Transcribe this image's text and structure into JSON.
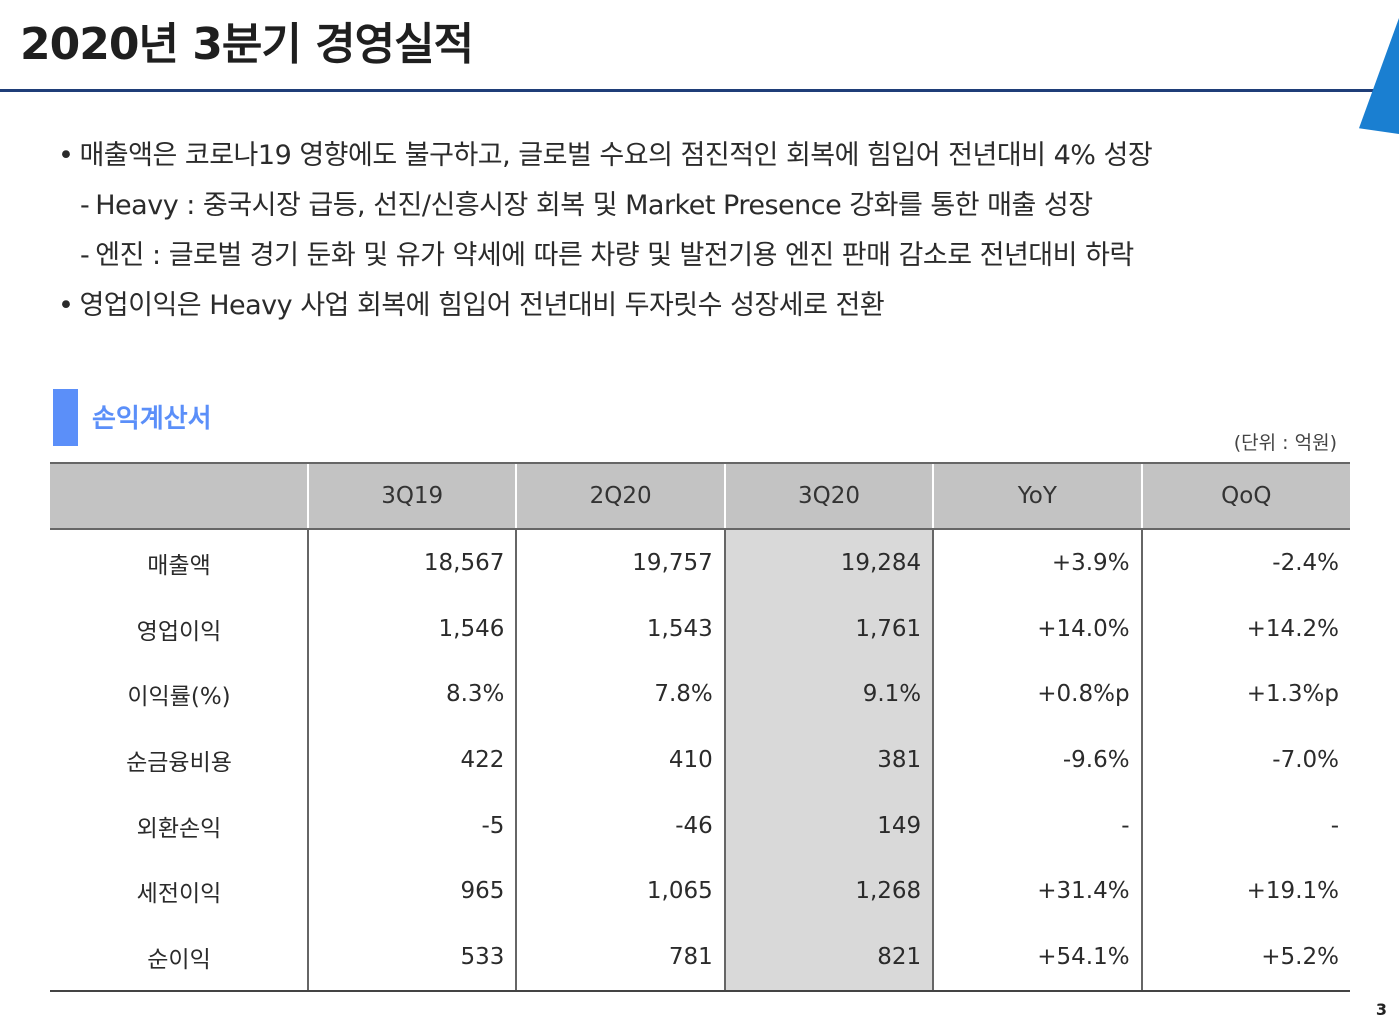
{
  "title": "2020년 3분기 경영실적",
  "bullets": [
    {
      "mark": "•",
      "text": "매출액은 코로나19 영향에도 불구하고, 글로벌 수요의 점진적인 회복에 힘입어 전년대비 4% 성장"
    },
    {
      "mark": "-",
      "text": "Heavy : 중국시장 급등, 선진/신흥시장 회복 및 Market Presence 강화를 통한 매출 성장"
    },
    {
      "mark": "-",
      "text": "엔진 : 글로벌 경기 둔화 및 유가 약세에 따른 차량 및 발전기용 엔진 판매 감소로 전년대비 하락"
    },
    {
      "mark": "•",
      "text": "영업이익은 Heavy 사업 회복에 힘입어 전년대비 두자릿수 성장세로 전환"
    }
  ],
  "section_title": "손익계산서",
  "unit_label": "(단위 : 억원)",
  "table": {
    "headers": [
      "",
      "3Q19",
      "2Q20",
      "3Q20",
      "YoY",
      "QoQ"
    ],
    "rows": [
      [
        "매출액",
        "18,567",
        "19,757",
        "19,284",
        "+3.9%",
        "-2.4%"
      ],
      [
        "영업이익",
        "1,546",
        "1,543",
        "1,761",
        "+14.0%",
        "+14.2%"
      ],
      [
        "이익률(%)",
        "8.3%",
        "7.8%",
        "9.1%",
        "+0.8%p",
        "+1.3%p"
      ],
      [
        "순금융비용",
        "422",
        "410",
        "381",
        "-9.6%",
        "-7.0%"
      ],
      [
        "외환손익",
        "-5",
        "-46",
        "149",
        "-",
        "-"
      ],
      [
        "세전이익",
        "965",
        "1,065",
        "1,268",
        "+31.4%",
        "+19.1%"
      ],
      [
        "순이익",
        "533",
        "781",
        "821",
        "+54.1%",
        "+5.2%"
      ]
    ]
  },
  "page_number": "3",
  "colors": {
    "title_rule": "#1f3e78",
    "accent": "#5b8ff9",
    "corner": "#1a7fd1",
    "header_bg": "#c3c3c3",
    "highlight_col_bg": "#d9d9d9"
  }
}
